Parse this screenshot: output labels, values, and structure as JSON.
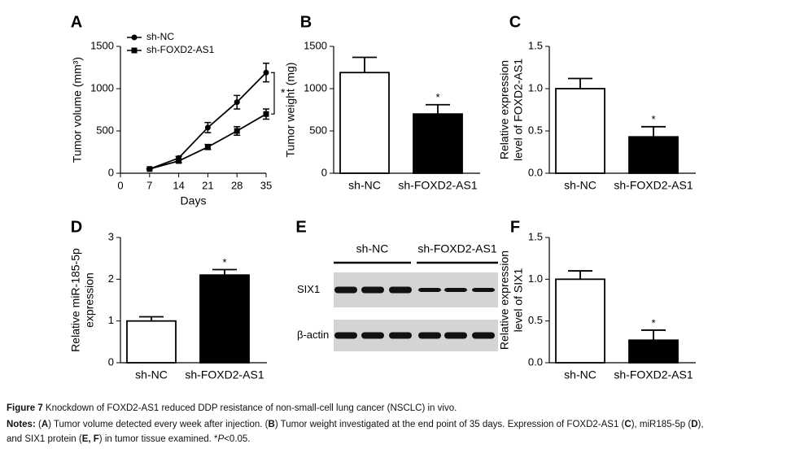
{
  "chart_data": [
    {
      "type": "line",
      "panel": "A",
      "ylabel": [
        "Tumor volume (mm³)"
      ],
      "xlabel": "Days",
      "x": [
        7,
        14,
        21,
        28,
        35
      ],
      "xlim": [
        0,
        35
      ],
      "xticks": [
        0,
        7,
        14,
        21,
        28,
        35
      ],
      "ylim": [
        0,
        1500
      ],
      "yticks": [
        0,
        500,
        1000,
        1500
      ],
      "series": [
        {
          "name": "sh-NC",
          "color": "#000000",
          "marker": "circle",
          "values": [
            50,
            180,
            540,
            840,
            1190
          ],
          "errors": [
            0,
            20,
            60,
            80,
            110
          ]
        },
        {
          "name": "sh-FOXD2-AS1",
          "color": "#000000",
          "marker": "square",
          "values": [
            50,
            145,
            310,
            500,
            700
          ],
          "errors": [
            0,
            20,
            30,
            50,
            60
          ]
        }
      ],
      "legend": "upper left",
      "annotation": "*"
    },
    {
      "type": "bar",
      "panel": "B",
      "ylabel": [
        "Tumor weight (mg)"
      ],
      "categories": [
        "sh-NC",
        "sh-FOXD2-AS1"
      ],
      "values": [
        1190,
        700
      ],
      "errors": [
        180,
        110
      ],
      "colors": [
        "#ffffff",
        "#000000"
      ],
      "ylim": [
        0,
        1500
      ],
      "yticks": [
        0,
        500,
        1000,
        1500
      ],
      "annotation": "*"
    },
    {
      "type": "bar",
      "panel": "C",
      "ylabel": [
        "Relative expression",
        "level of FOXD2-AS1"
      ],
      "categories": [
        "sh-NC",
        "sh-FOXD2-AS1"
      ],
      "values": [
        1.0,
        0.43
      ],
      "errors": [
        0.12,
        0.12
      ],
      "colors": [
        "#ffffff",
        "#000000"
      ],
      "ylim": [
        0,
        1.5
      ],
      "yticks": [
        {
          "value": 0,
          "label": "0.0"
        },
        0.5,
        {
          "value": 1,
          "label": "1.0"
        },
        1.5
      ],
      "annotation": "*"
    },
    {
      "type": "bar",
      "panel": "D",
      "ylabel": [
        "Relative miR-185-5p",
        "expression"
      ],
      "categories": [
        "sh-NC",
        "sh-FOXD2-AS1"
      ],
      "values": [
        1.0,
        2.1
      ],
      "errors": [
        0.1,
        0.13
      ],
      "colors": [
        "#ffffff",
        "#000000"
      ],
      "ylim": [
        0,
        3
      ],
      "yticks": [
        0,
        1,
        2,
        3
      ],
      "annotation": "*"
    },
    {
      "type": "bar",
      "panel": "F",
      "ylabel": [
        "Relative expression",
        "level of SIX1"
      ],
      "categories": [
        "sh-NC",
        "sh-FOXD2-AS1"
      ],
      "values": [
        1.0,
        0.27
      ],
      "errors": [
        0.1,
        0.12
      ],
      "colors": [
        "#ffffff",
        "#000000"
      ],
      "ylim": [
        0,
        1.5
      ],
      "yticks": [
        {
          "value": 0,
          "label": "0.0"
        },
        0.5,
        {
          "value": 1,
          "label": "1.0"
        },
        1.5
      ],
      "annotation": "*"
    }
  ],
  "blot": {
    "panel": "E",
    "groups": [
      "sh-NC",
      "sh-FOXD2-AS1"
    ],
    "rows": [
      "SIX1",
      "β-actin"
    ]
  },
  "caption": {
    "title": [
      {
        "text": "Figure 7",
        "bold": true
      },
      {
        "text": " Knockdown of FOXD2-AS1 reduced DDP resistance of non-small-cell lung cancer (NSCLC) in vivo."
      }
    ],
    "notes": [
      [
        {
          "text": "Notes:",
          "bold": true
        },
        {
          "text": " ("
        },
        {
          "text": "A",
          "bold": true
        },
        {
          "text": ") Tumor volume detected every week after injection. ("
        },
        {
          "text": "B",
          "bold": true
        },
        {
          "text": ") Tumor weight investigated at the end point of 35 days. Expression of FOXD2-AS1 ("
        },
        {
          "text": "C",
          "bold": true
        },
        {
          "text": "), miR185-5p ("
        },
        {
          "text": "D",
          "bold": true
        },
        {
          "text": "),"
        }
      ],
      [
        {
          "text": "and SIX1 protein ("
        },
        {
          "text": "E, F",
          "bold": true
        },
        {
          "text": ") in tumor tissue examined. *"
        },
        {
          "text": "P",
          "italic": true
        },
        {
          "text": "<0.05."
        }
      ]
    ]
  }
}
